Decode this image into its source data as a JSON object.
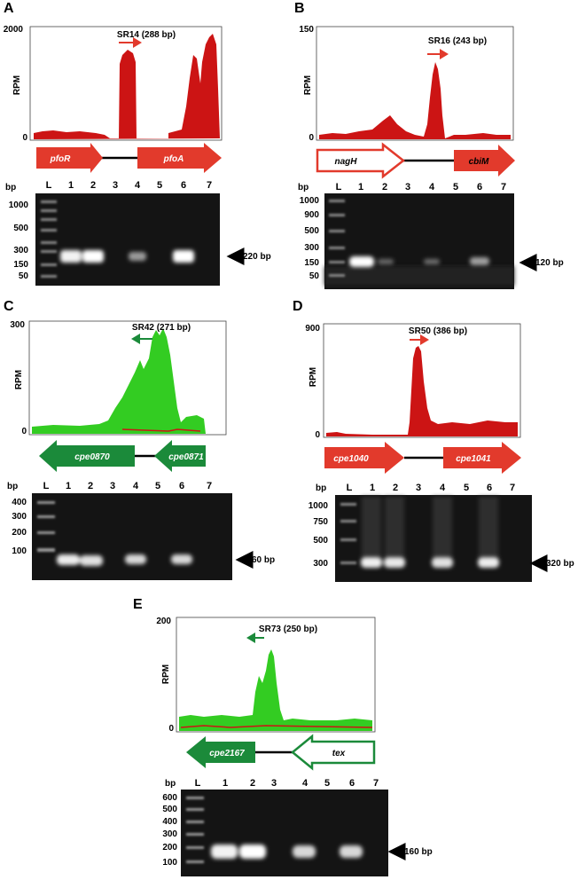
{
  "panels": {
    "A": {
      "label": "A",
      "rpm_max": "2000",
      "rpm_zero": "0",
      "rpm_label": "RPM",
      "srna": "SR14 (288 bp)",
      "genes": [
        "pfoR",
        "pfoA"
      ],
      "gel": {
        "bp": "bp",
        "ladder_label": "L",
        "lanes": [
          "1",
          "2",
          "3",
          "4",
          "5",
          "6",
          "7"
        ],
        "ladder": [
          "1000",
          "500",
          "300",
          "150",
          "50"
        ],
        "band": "220 bp"
      },
      "colors": {
        "coverage": "#cc1414",
        "gene": "#e23a2c"
      }
    },
    "B": {
      "label": "B",
      "rpm_max": "150",
      "rpm_zero": "0",
      "rpm_label": "RPM",
      "srna": "SR16 (243 bp)",
      "genes": [
        "nagH",
        "cbiM"
      ],
      "gel": {
        "bp": "bp",
        "ladder_label": "L",
        "lanes": [
          "1",
          "2",
          "3",
          "4",
          "5",
          "6",
          "7"
        ],
        "ladder": [
          "1000",
          "900",
          "500",
          "300",
          "150",
          "50"
        ],
        "band": "120 bp"
      },
      "colors": {
        "coverage": "#cc1414",
        "gene": "#e23a2c"
      }
    },
    "C": {
      "label": "C",
      "rpm_max": "300",
      "rpm_zero": "0",
      "rpm_label": "RPM",
      "srna": "SR42 (271 bp)",
      "genes": [
        "cpe0870",
        "cpe0871"
      ],
      "gel": {
        "bp": "bp",
        "ladder_label": "L",
        "lanes": [
          "1",
          "2",
          "3",
          "4",
          "5",
          "6",
          "7"
        ],
        "ladder": [
          "400",
          "300",
          "200",
          "100"
        ],
        "band": "60 bp"
      },
      "colors": {
        "coverage": "#33cc22",
        "gene": "#1b8a3a"
      }
    },
    "D": {
      "label": "D",
      "rpm_max": "900",
      "rpm_zero": "0",
      "rpm_label": "RPM",
      "srna": "SR50 (386 bp)",
      "genes": [
        "cpe1040",
        "cpe1041"
      ],
      "gel": {
        "bp": "bp",
        "ladder_label": "L",
        "lanes": [
          "1",
          "2",
          "3",
          "4",
          "5",
          "6",
          "7"
        ],
        "ladder": [
          "1000",
          "750",
          "500",
          "300"
        ],
        "band": "320 bp"
      },
      "colors": {
        "coverage": "#cc1414",
        "gene": "#e23a2c"
      }
    },
    "E": {
      "label": "E",
      "rpm_max": "200",
      "rpm_zero": "0",
      "rpm_label": "RPM",
      "srna": "SR73 (250 bp)",
      "genes": [
        "cpe2167",
        "tex"
      ],
      "gel": {
        "bp": "bp",
        "ladder_label": "L",
        "lanes": [
          "1",
          "2",
          "3",
          "4",
          "5",
          "6",
          "7"
        ],
        "ladder": [
          "600",
          "500",
          "400",
          "300",
          "200",
          "100"
        ],
        "band": "160 bp"
      },
      "colors": {
        "coverage": "#33cc22",
        "gene": "#1b8a3a"
      }
    }
  }
}
